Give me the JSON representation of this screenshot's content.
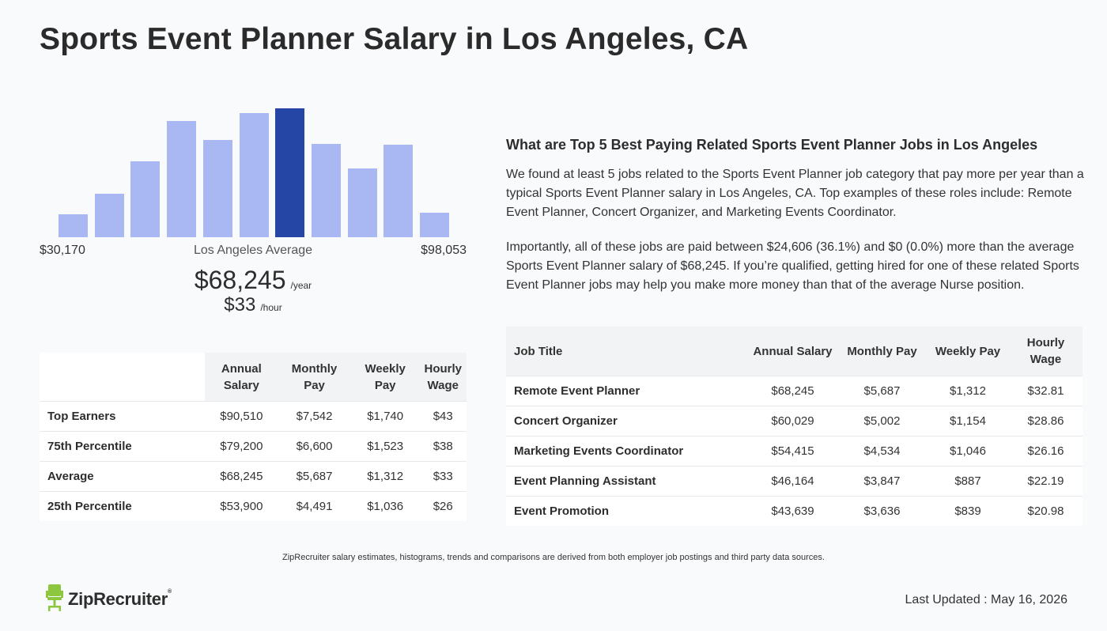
{
  "page": {
    "title": "Sports Event Planner Salary in Los Angeles, CA"
  },
  "chart_data": {
    "type": "bar",
    "title": "",
    "categories": [
      "b1",
      "b2",
      "b3",
      "b4",
      "b5",
      "b6",
      "b7",
      "b8",
      "b9",
      "b10",
      "b11"
    ],
    "values": [
      27,
      52,
      90,
      138,
      116,
      148,
      153,
      111,
      82,
      110,
      29
    ],
    "highlight_index": 6,
    "ylim": [
      0,
      160
    ],
    "colors": {
      "bar": "#a9b8f2",
      "highlight": "#2646a6"
    },
    "range_min_label": "$30,170",
    "range_max_label": "$98,053",
    "average_label": "Los Angeles Average"
  },
  "salary": {
    "annual": "$68,245",
    "annual_unit": "/year",
    "hourly": "$33",
    "hourly_unit": "/hour"
  },
  "percentile_table": {
    "headers": [
      "Annual Salary",
      "Monthly Pay",
      "Weekly Pay",
      "Hourly Wage"
    ],
    "rows": [
      {
        "label": "Top Earners",
        "values": [
          "$90,510",
          "$7,542",
          "$1,740",
          "$43"
        ]
      },
      {
        "label": "75th Percentile",
        "values": [
          "$79,200",
          "$6,600",
          "$1,523",
          "$38"
        ]
      },
      {
        "label": "Average",
        "values": [
          "$68,245",
          "$5,687",
          "$1,312",
          "$33"
        ]
      },
      {
        "label": "25th Percentile",
        "values": [
          "$53,900",
          "$4,491",
          "$1,036",
          "$26"
        ]
      }
    ]
  },
  "related": {
    "heading": "What are Top 5 Best Paying Related Sports Event Planner Jobs in Los Angeles",
    "paragraph1": "We found at least 5 jobs related to the Sports Event Planner job category that pay more per year than a typical Sports Event Planner salary in Los Angeles, CA. Top examples of these roles include: Remote Event Planner, Concert Organizer, and Marketing Events Coordinator.",
    "paragraph2": "Importantly, all of these jobs are paid between $24,606 (36.1%) and $0 (0.0%) more than the average Sports Event Planner salary of $68,245. If you’re qualified, getting hired for one of these related Sports Event Planner jobs may help you make more money than that of the average Nurse position."
  },
  "jobs_table": {
    "headers": [
      "Job Title",
      "Annual Salary",
      "Monthly Pay",
      "Weekly Pay",
      "Hourly Wage"
    ],
    "rows": [
      {
        "label": "Remote Event Planner",
        "values": [
          "$68,245",
          "$5,687",
          "$1,312",
          "$32.81"
        ]
      },
      {
        "label": "Concert Organizer",
        "values": [
          "$60,029",
          "$5,002",
          "$1,154",
          "$28.86"
        ]
      },
      {
        "label": "Marketing Events Coordinator",
        "values": [
          "$54,415",
          "$4,534",
          "$1,046",
          "$26.16"
        ]
      },
      {
        "label": "Event Planning Assistant",
        "values": [
          "$46,164",
          "$3,847",
          "$887",
          "$22.19"
        ]
      },
      {
        "label": "Event Promotion",
        "values": [
          "$43,639",
          "$3,636",
          "$839",
          "$20.98"
        ]
      }
    ]
  },
  "footer": {
    "note": "ZipRecruiter salary estimates, histograms, trends and comparisons are derived from both employer job postings and third party data sources.",
    "logo_text": "ZipRecruiter",
    "logo_mark": "®",
    "logo_icon": "chair-icon",
    "updated": "Last Updated : May 16, 2026"
  }
}
